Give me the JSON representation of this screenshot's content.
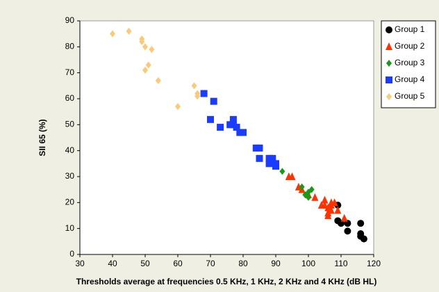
{
  "chart_data": {
    "type": "scatter",
    "x_label": "Thresholds average at frequencies 0.5 KHz, 1 KHz, 2 KHz and 4 KHz (dB HL)",
    "y_label": "SII 65 (%)",
    "xlim": [
      30,
      120
    ],
    "xticks": [
      30,
      40,
      50,
      60,
      70,
      80,
      90,
      100,
      110,
      120
    ],
    "ylim": [
      0,
      90
    ],
    "yticks": [
      0,
      10,
      20,
      30,
      40,
      50,
      60,
      70,
      80,
      90
    ],
    "grid": false,
    "legend": "right",
    "series": [
      {
        "name": "Group 1",
        "color": "#000000",
        "marker": "circle",
        "x": [
          109,
          109,
          110,
          112,
          112,
          116,
          116,
          116,
          117
        ],
        "values": [
          19,
          13,
          12,
          12,
          9,
          12,
          8,
          7,
          6
        ]
      },
      {
        "name": "Group 2",
        "color": "#ff3300",
        "marker": "triangle",
        "x": [
          94,
          95,
          97,
          98,
          100,
          102,
          104,
          105,
          105,
          106,
          106,
          106,
          107,
          107,
          107,
          108,
          109,
          111
        ],
        "values": [
          30,
          30,
          26,
          25,
          23,
          22,
          19,
          21,
          19,
          18,
          15,
          16,
          20,
          19,
          17,
          20,
          17,
          14
        ]
      },
      {
        "name": "Group 3",
        "color": "#1a9a1a",
        "marker": "diamond",
        "x": [
          92,
          98,
          99,
          100,
          100,
          101
        ],
        "values": [
          32,
          26,
          23,
          22,
          24,
          25
        ]
      },
      {
        "name": "Group 4",
        "color": "#1a3cff",
        "marker": "square",
        "x": [
          68,
          71,
          70,
          73,
          76,
          77,
          77,
          78,
          79,
          80,
          84,
          85,
          85,
          88,
          88,
          89,
          90,
          90
        ],
        "values": [
          62,
          59,
          52,
          49,
          50,
          52,
          50,
          49,
          47,
          47,
          41,
          41,
          37,
          35,
          37,
          37,
          35,
          34
        ]
      },
      {
        "name": "Group 5",
        "color": "#fcc979",
        "marker": "diamond",
        "x": [
          40,
          45,
          49,
          49,
          50,
          52,
          51,
          50,
          54,
          65,
          66,
          66,
          60
        ],
        "values": [
          85,
          86,
          83,
          82,
          80,
          79,
          73,
          71,
          67,
          65,
          62,
          61,
          57
        ]
      }
    ]
  }
}
